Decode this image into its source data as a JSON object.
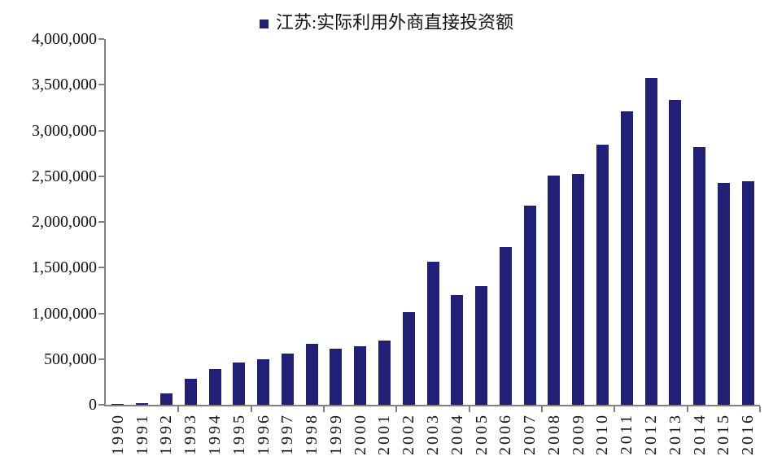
{
  "chart_data": {
    "type": "bar",
    "legend": "江苏:实际利用外商直接投资额",
    "categories": [
      "1990",
      "1991",
      "1992",
      "1993",
      "1994",
      "1995",
      "1996",
      "1997",
      "1998",
      "1999",
      "2000",
      "2001",
      "2002",
      "2003",
      "2004",
      "2005",
      "2006",
      "2007",
      "2008",
      "2009",
      "2010",
      "2011",
      "2012",
      "2013",
      "2014",
      "2015",
      "2016"
    ],
    "values": [
      12400,
      21900,
      125000,
      280000,
      390000,
      460000,
      495000,
      560000,
      665000,
      615000,
      640000,
      700000,
      1015000,
      1560000,
      1200000,
      1300000,
      1725000,
      2175000,
      2510000,
      2525000,
      2845000,
      3210000,
      3575000,
      3330000,
      2815000,
      2425000,
      2440000
    ],
    "ylim": [
      0,
      4000000
    ],
    "ytick_step": 500000,
    "xtick_interval": 3,
    "grid": false,
    "legend_position": "top-center",
    "bar_color": "#1F2076",
    "axis_color": "#808080",
    "text_color": "#111111",
    "background_color": "#ffffff"
  }
}
